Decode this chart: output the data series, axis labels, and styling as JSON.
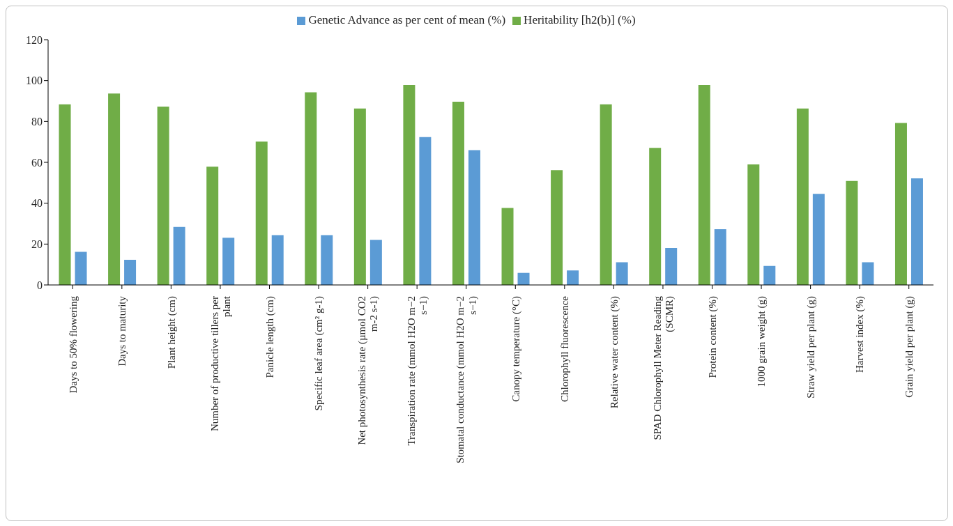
{
  "chart_data": {
    "type": "bar",
    "categories": [
      "Days to 50% flowering",
      "Days to maturity",
      "Plant height (cm)",
      "Number of productive tillers per plant",
      "Panicle length (cm)",
      "Specific leaf area (cm² g-1)",
      "Net photosynthesis rate (µmol CO2 m-2 s-1)",
      "Transpiration rate (mmol H2O m−2 s−1)",
      "Stomatal conductance (mmol H2O m−2 s−1)",
      "Canopy temperature (°C)",
      "Chlorophyll fluorescence",
      "Relative water content (%)",
      "SPAD Chlorophyll Meter Reading (SCMR)",
      "Protein content (%)",
      "1000 grain weight (g)",
      "Straw yield per plant (g)",
      "Harvest index (%)",
      "Grain yield per plant (g)"
    ],
    "series": [
      {
        "name": "Heritability [h2(b)] (%)",
        "color": "#70ad47",
        "values": [
          88.4,
          93.7,
          87.3,
          57.9,
          70.1,
          94.3,
          86.3,
          97.8,
          89.7,
          37.7,
          56.2,
          88.4,
          67.1,
          97.8,
          59.0,
          86.3,
          50.9,
          79.3
        ]
      },
      {
        "name": "Genetic Advance as per cent of mean (%)",
        "color": "#5b9bd5",
        "values": [
          16.2,
          12.3,
          28.4,
          23.1,
          24.4,
          24.4,
          22.1,
          72.4,
          66.0,
          5.9,
          7.1,
          11.1,
          18.1,
          27.3,
          9.3,
          44.6,
          11.1,
          52.2
        ]
      }
    ],
    "ylim": [
      0,
      120
    ],
    "yticks": [
      0,
      20,
      40,
      60,
      80,
      100,
      120
    ],
    "grid": false,
    "legend": "top"
  }
}
